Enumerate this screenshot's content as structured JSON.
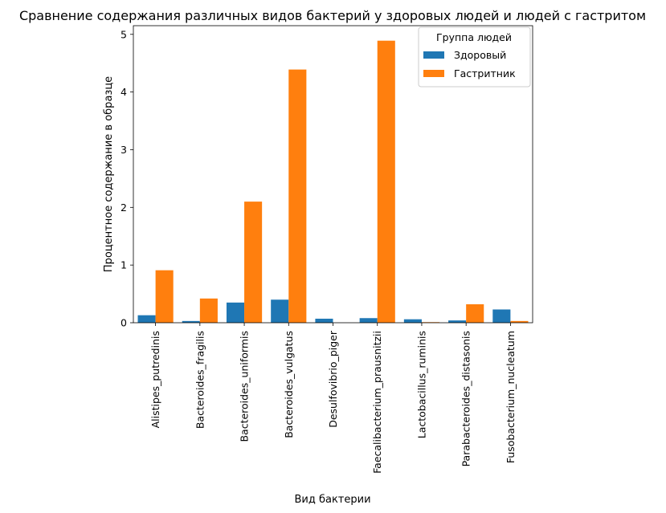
{
  "chart_data": {
    "type": "bar",
    "title": "Сравнение содержания различных видов бактерий у здоровых людей и людей с гастритом",
    "xlabel": "Вид бактерии",
    "ylabel": "Процентное содержание в образце",
    "ylim": [
      0,
      5.15
    ],
    "yticks": [
      "0",
      "1",
      "2",
      "3",
      "4",
      "5"
    ],
    "categories": [
      "Alistipes_putredinis",
      "Bacteroides_fragilis",
      "Bacteroides_uniformis",
      "Bacteroides_vulgatus",
      "Desulfovibrio_piger",
      "Faecalibacterium_prausnitzii",
      "Lactobacillus_ruminis",
      "Parabacteroides_distasonis",
      "Fusobacterium_nucleatum"
    ],
    "series": [
      {
        "name": "Здоровый",
        "color": "#1f77b4",
        "values": [
          0.13,
          0.03,
          0.35,
          0.4,
          0.07,
          0.08,
          0.06,
          0.04,
          0.23
        ]
      },
      {
        "name": "Гастритник",
        "color": "#ff7f0e",
        "values": [
          0.91,
          0.42,
          2.1,
          4.39,
          0.0,
          4.89,
          0.01,
          0.32,
          0.03
        ]
      }
    ],
    "legend": {
      "title": "Группа людей",
      "position": "top-right"
    },
    "grid": false
  }
}
